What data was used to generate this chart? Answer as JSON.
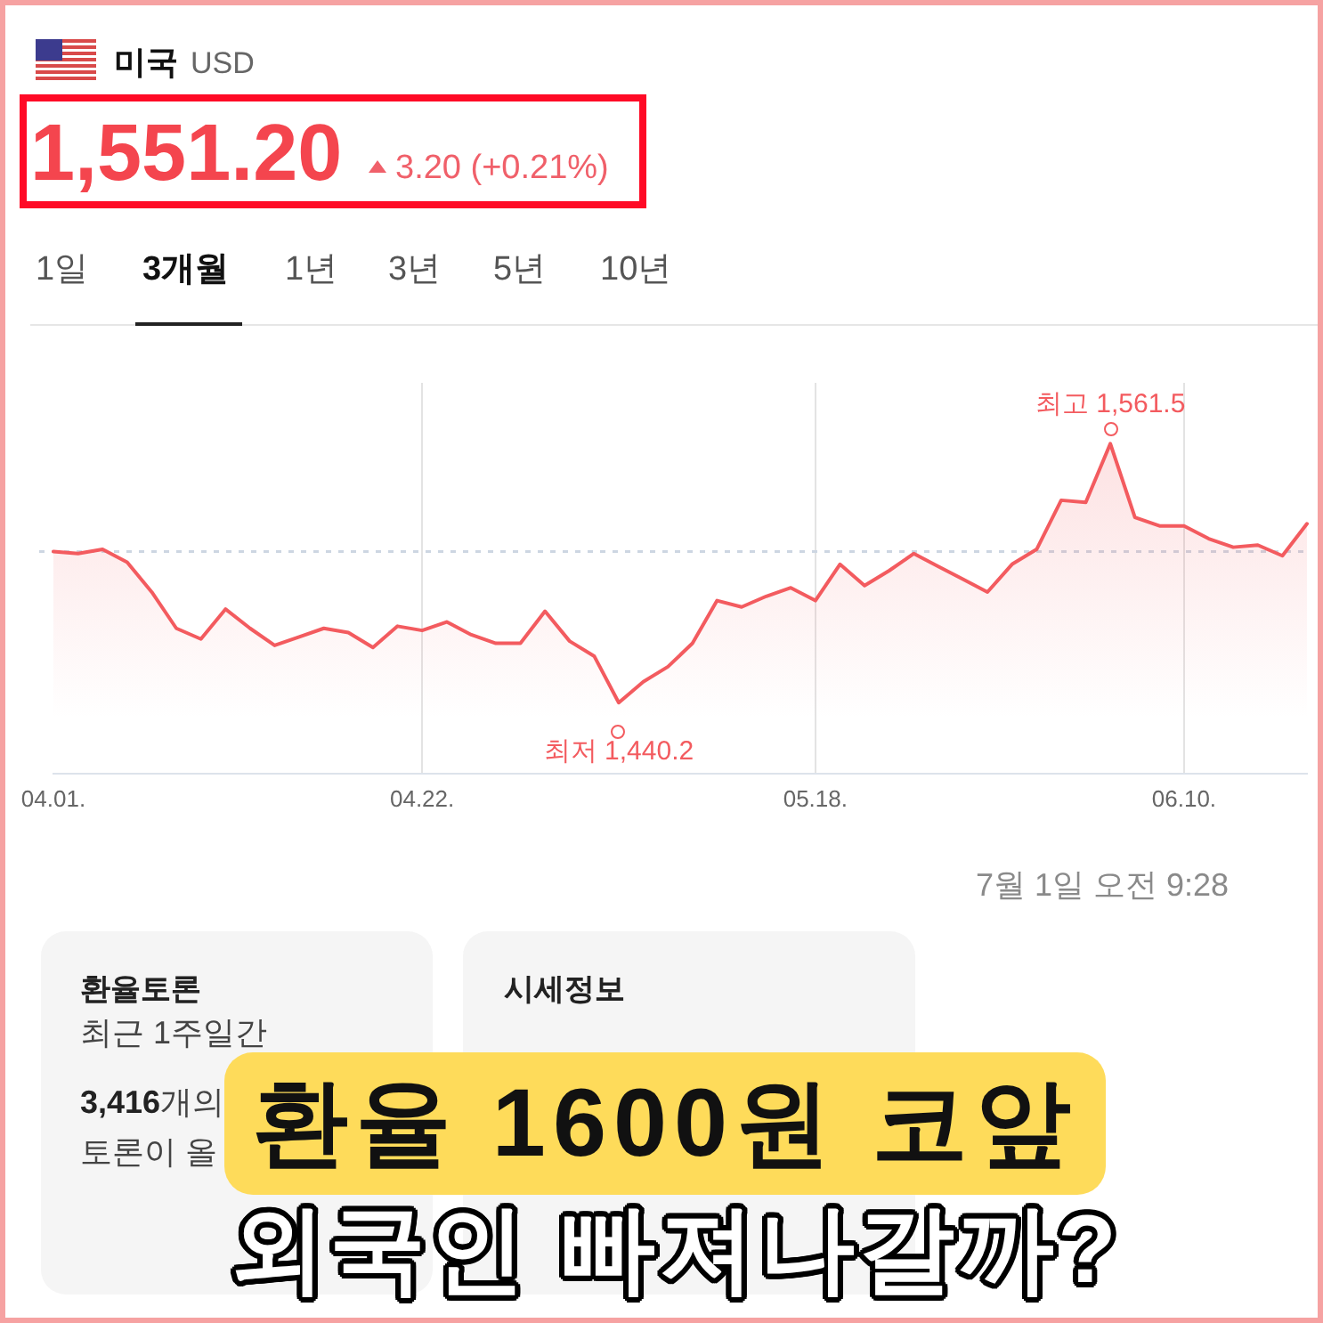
{
  "chart_data": {
    "type": "area",
    "title": "미국 USD",
    "categories": [
      "04.01.",
      null,
      null,
      null,
      null,
      null,
      null,
      null,
      null,
      null,
      null,
      null,
      null,
      null,
      null,
      "04.22.",
      null,
      null,
      null,
      null,
      null,
      null,
      null,
      null,
      null,
      null,
      null,
      null,
      null,
      null,
      null,
      "05.18.",
      null,
      null,
      null,
      null,
      null,
      null,
      null,
      null,
      null,
      null,
      null,
      null,
      null,
      null,
      "06.10.",
      null,
      null,
      null,
      null,
      null
    ],
    "values": [
      1511,
      1510,
      1512,
      1506,
      1492,
      1475,
      1470,
      1484,
      1475,
      1467,
      1471,
      1475,
      1473,
      1466,
      1476,
      1474,
      1478,
      1472,
      1468,
      1468,
      1483,
      1469,
      1462,
      1440.2,
      1450,
      1457,
      1468,
      1488,
      1485,
      1490,
      1494,
      1488,
      1505,
      1495,
      1502,
      1510,
      1504,
      1498,
      1492,
      1505,
      1512,
      1535,
      1534,
      1561.5,
      1527,
      1523,
      1523,
      1517,
      1513,
      1514,
      1509,
      1524
    ],
    "value_labels": [
      null,
      null,
      null,
      null,
      null,
      null,
      null,
      null,
      null,
      null,
      null,
      null,
      null,
      null,
      null,
      null,
      null,
      null,
      null,
      null,
      null,
      null,
      null,
      "최저 1,440.2",
      null,
      null,
      null,
      null,
      null,
      null,
      null,
      null,
      null,
      null,
      null,
      null,
      null,
      null,
      null,
      null,
      null,
      null,
      null,
      "최고 1,561.5",
      null,
      null,
      null,
      null,
      null,
      null,
      null,
      null
    ],
    "color": "#f35b5f",
    "ylim": [
      1407,
      1590
    ],
    "grid": "x",
    "tick_labels": "x",
    "ref_lines": [
      {
        "axis": "y",
        "value": 1511,
        "line_style": "dashed",
        "color": "#cdd6e2"
      }
    ],
    "annotations": [
      "1,551.20",
      "3.20 (+0.21%)",
      "1일",
      "3개월",
      "1년",
      "3년",
      "5년",
      "10년",
      "7월 1일 오전 9:28",
      "환율토론",
      "최근 1주일간",
      "3,416개의",
      "토론이 올",
      "시세정보",
      "환율 1600원 코앞",
      "외국인 빠져나갈까?"
    ]
  }
}
